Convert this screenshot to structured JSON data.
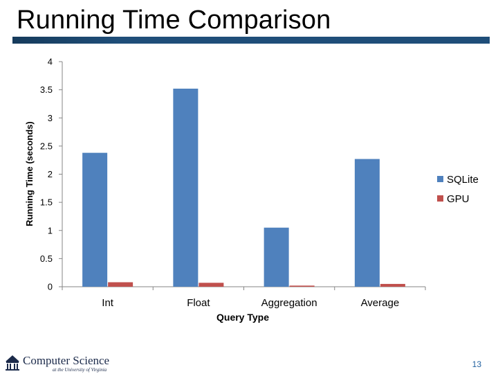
{
  "slide": {
    "title": "Running Time Comparison",
    "page_number": "13",
    "footer_logo_text": "Computer Science",
    "footer_logo_subtext": "at the University of Virginia"
  },
  "colors": {
    "title_rule": "#1f4e79",
    "sqlite": "#4f81bd",
    "gpu": "#c0504d",
    "axis": "#868686",
    "page_number": "#1f5f9f"
  },
  "chart_data": {
    "type": "bar",
    "categories": [
      "Int",
      "Float",
      "Aggregation",
      "Average"
    ],
    "series": [
      {
        "name": "SQLite",
        "values": [
          2.38,
          3.52,
          1.05,
          2.27
        ]
      },
      {
        "name": "GPU",
        "values": [
          0.08,
          0.07,
          0.02,
          0.05
        ]
      }
    ],
    "xlabel": "Query Type",
    "ylabel": "Running Time (seconds)",
    "ylim": [
      0,
      4
    ],
    "yticks": [
      "0",
      "0.5",
      "1",
      "1.5",
      "2",
      "2.5",
      "3",
      "3.5",
      "4"
    ],
    "grid": false,
    "legend_position": "right"
  }
}
